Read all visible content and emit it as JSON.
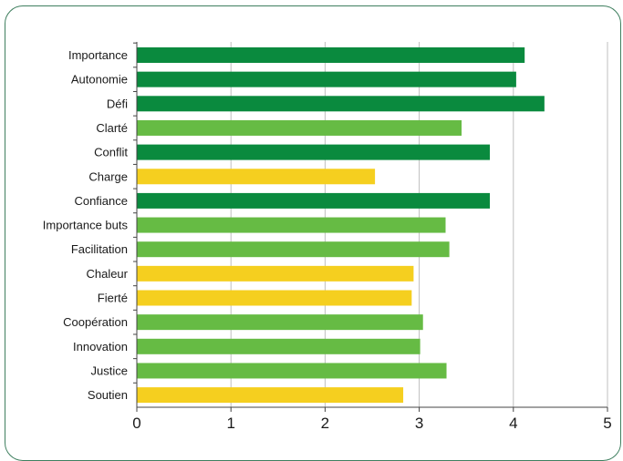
{
  "chart_data": {
    "type": "bar",
    "orientation": "horizontal",
    "categories": [
      "Importance",
      "Autonomie",
      "Défi",
      "Clarté",
      "Conflit",
      "Charge",
      "Confiance",
      "Importance buts",
      "Facilitation",
      "Chaleur",
      "Fierté",
      "Coopération",
      "Innovation",
      "Justice",
      "Soutien"
    ],
    "values": [
      4.12,
      4.03,
      4.33,
      3.45,
      3.75,
      2.53,
      3.75,
      3.28,
      3.32,
      2.94,
      2.92,
      3.04,
      3.01,
      3.29,
      2.83
    ],
    "bar_colors": [
      "#0a8a3e",
      "#0a8a3e",
      "#0a8a3e",
      "#66bb44",
      "#0a8a3e",
      "#f5cf1f",
      "#0a8a3e",
      "#66bb44",
      "#66bb44",
      "#f5cf1f",
      "#f5cf1f",
      "#66bb44",
      "#66bb44",
      "#66bb44",
      "#f5cf1f"
    ],
    "xlim": [
      0,
      5
    ],
    "xticks": [
      "0",
      "1",
      "2",
      "3",
      "4",
      "5"
    ],
    "grid": "vertical",
    "title": "",
    "xlabel": "",
    "ylabel": ""
  },
  "colors": {
    "frame": "#3f7f5f",
    "grid": "#bfbfbf",
    "axis": "#444444",
    "dark_green": "#0a8a3e",
    "light_green": "#66bb44",
    "yellow": "#f5cf1f"
  }
}
